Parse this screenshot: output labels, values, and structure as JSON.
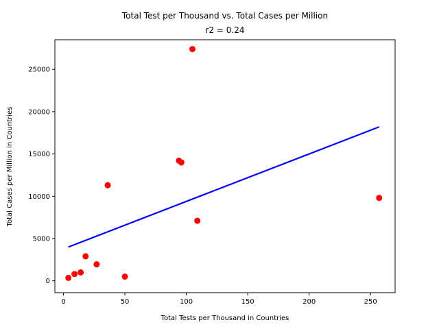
{
  "chart_data": {
    "type": "scatter",
    "title": "Total Test per Thousand vs. Total Cases per Million",
    "subtitle": "r2 = 0.24",
    "xlabel": "Total Tests per Thousand in Countries",
    "ylabel": "Total Cases per Million in Countries",
    "xlim": [
      -7,
      270
    ],
    "ylim": [
      -1400,
      28500
    ],
    "xticks": [
      0,
      50,
      100,
      150,
      200,
      250
    ],
    "yticks": [
      0,
      5000,
      10000,
      15000,
      20000,
      25000
    ],
    "grid": false,
    "points": [
      {
        "x": 105,
        "y": 27400
      },
      {
        "x": 94,
        "y": 14200
      },
      {
        "x": 96,
        "y": 14000
      },
      {
        "x": 36,
        "y": 11300
      },
      {
        "x": 257,
        "y": 9800
      },
      {
        "x": 109,
        "y": 7100
      },
      {
        "x": 18,
        "y": 2900
      },
      {
        "x": 27,
        "y": 1950
      },
      {
        "x": 14,
        "y": 1000
      },
      {
        "x": 9,
        "y": 800
      },
      {
        "x": 50,
        "y": 500
      },
      {
        "x": 4,
        "y": 350
      }
    ],
    "regression": {
      "x": [
        4,
        257
      ],
      "y": [
        4000,
        18200
      ]
    },
    "colors": {
      "points": "#ff0000",
      "line": "#0000ff"
    }
  }
}
